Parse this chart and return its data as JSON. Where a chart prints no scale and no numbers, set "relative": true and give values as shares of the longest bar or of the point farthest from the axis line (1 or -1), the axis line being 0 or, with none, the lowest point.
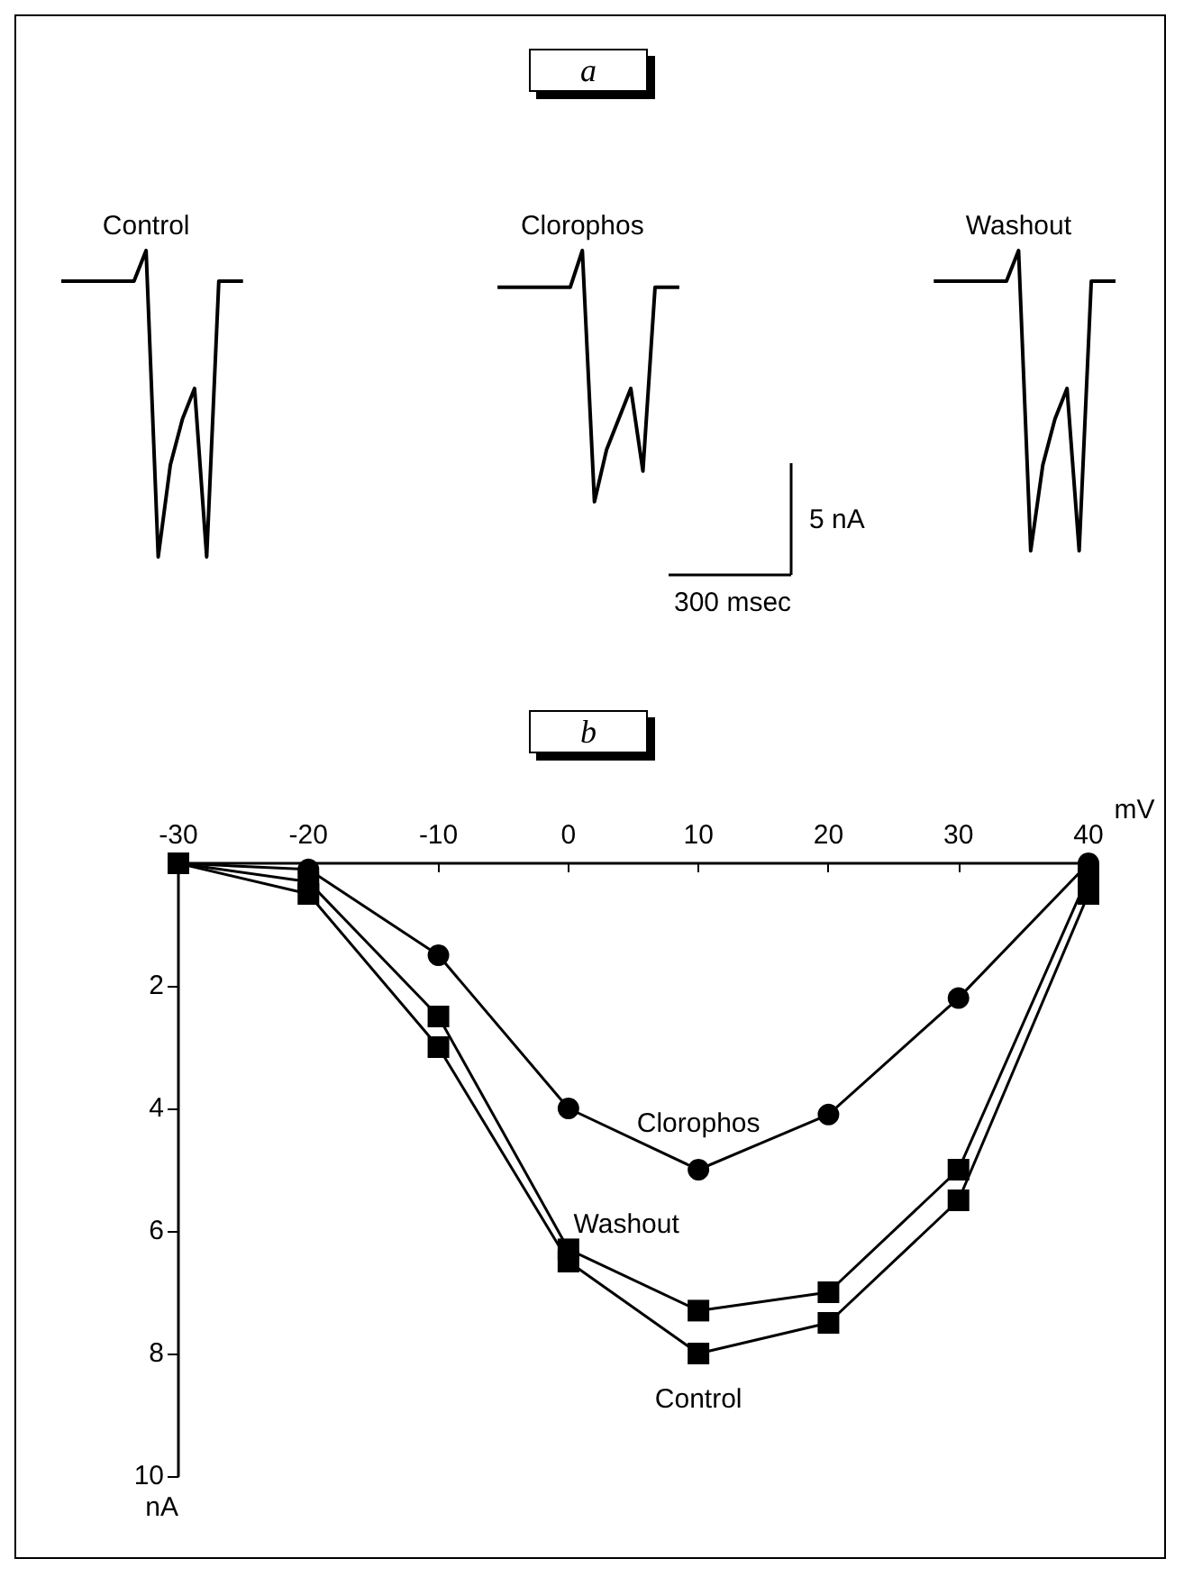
{
  "chart_data": [
    {
      "type": "line",
      "title": "a",
      "relative": true,
      "marker": "none",
      "line_style": "solid",
      "grid": false,
      "legend": false,
      "categories": [
        null,
        null,
        null,
        null,
        null,
        null,
        null,
        null,
        null,
        null,
        null,
        null,
        null,
        null,
        null,
        null,
        null,
        null,
        null,
        null,
        null,
        null,
        null,
        null,
        null,
        null,
        null,
        null,
        null,
        null,
        null,
        null,
        null,
        null,
        null,
        null,
        null,
        null,
        null,
        null,
        null,
        null,
        null,
        null,
        null,
        null,
        null,
        null,
        null,
        null,
        null,
        null,
        null,
        null,
        null,
        null,
        null,
        null,
        null,
        null,
        null,
        null,
        null,
        null,
        null,
        null,
        null,
        null,
        null,
        null,
        null,
        null,
        null,
        null,
        null,
        null,
        null,
        null,
        null,
        null,
        null,
        null,
        null,
        null,
        null,
        null,
        null,
        null
      ],
      "series": [
        {
          "name": "Control",
          "color": "#000000",
          "values": [
            0.9,
            0.9,
            0.9,
            0.9,
            0.9,
            0.9,
            0.9,
            1.0,
            0.0,
            0.3,
            0.45,
            0.55,
            0.0,
            0.9,
            0.9,
            0.9,
            null,
            null,
            null,
            null,
            null,
            null,
            null,
            null,
            null,
            null,
            null,
            null,
            null,
            null,
            null,
            null,
            null,
            null,
            null,
            null,
            null,
            null,
            null,
            null,
            null,
            null,
            null,
            null,
            null,
            null,
            null,
            null,
            null,
            null,
            null,
            null,
            null,
            null,
            null,
            null,
            null,
            null,
            null,
            null,
            null,
            null,
            null,
            null,
            null,
            null,
            null,
            null,
            null,
            null,
            null,
            null,
            null,
            null,
            null,
            null,
            null,
            null,
            null,
            null,
            null,
            null,
            null,
            null,
            null,
            null,
            null,
            null
          ]
        },
        {
          "name": "Clorophos",
          "color": "#000000",
          "values": [
            null,
            null,
            null,
            null,
            null,
            null,
            null,
            null,
            null,
            null,
            null,
            null,
            null,
            null,
            null,
            null,
            null,
            null,
            null,
            null,
            null,
            null,
            null,
            null,
            null,
            null,
            null,
            null,
            null,
            null,
            null,
            null,
            null,
            null,
            null,
            null,
            0.88,
            0.88,
            0.88,
            0.88,
            0.88,
            0.88,
            0.88,
            1.0,
            0.18,
            0.35,
            0.45,
            0.55,
            0.28,
            0.88,
            0.88,
            0.88,
            null,
            null,
            null,
            null,
            null,
            null,
            null,
            null,
            null,
            null,
            null,
            null,
            null,
            null,
            null,
            null,
            null,
            null,
            null,
            null,
            null,
            null,
            null,
            null,
            null,
            null,
            null,
            null,
            null,
            null,
            null,
            null,
            null,
            null,
            null,
            null
          ]
        },
        {
          "name": "Washout",
          "color": "#000000",
          "values": [
            null,
            null,
            null,
            null,
            null,
            null,
            null,
            null,
            null,
            null,
            null,
            null,
            null,
            null,
            null,
            null,
            null,
            null,
            null,
            null,
            null,
            null,
            null,
            null,
            null,
            null,
            null,
            null,
            null,
            null,
            null,
            null,
            null,
            null,
            null,
            null,
            null,
            null,
            null,
            null,
            null,
            null,
            null,
            null,
            null,
            null,
            null,
            null,
            null,
            null,
            null,
            null,
            null,
            null,
            null,
            null,
            null,
            null,
            null,
            null,
            null,
            null,
            null,
            null,
            null,
            null,
            null,
            null,
            null,
            null,
            null,
            null,
            0.9,
            0.9,
            0.9,
            0.9,
            0.9,
            0.9,
            0.9,
            1.0,
            0.02,
            0.3,
            0.45,
            0.55,
            0.02,
            0.9,
            0.9,
            0.9
          ]
        }
      ],
      "annotations": [
        "5 nA",
        "300 msec"
      ]
    },
    {
      "type": "line",
      "title": "b",
      "xlabel": "mV",
      "ylabel": "nA",
      "grid": false,
      "legend": false,
      "line_style": "solid",
      "x": [
        -30,
        -20,
        -10,
        0,
        10,
        20,
        30,
        40
      ],
      "xlim": [
        -30,
        40
      ],
      "xticks": [
        -30,
        -20,
        -10,
        0,
        10,
        20,
        30,
        40
      ],
      "ylim": [
        10,
        0
      ],
      "yticks": [
        {
          "value": 0,
          "label": null
        },
        2,
        4,
        6,
        8,
        10
      ],
      "series": [
        {
          "name": "Clorophos",
          "color": "#000000",
          "marker": "circle",
          "values": [
            0,
            0.1,
            1.5,
            4,
            5,
            4.1,
            2.2,
            0
          ]
        },
        {
          "name": "Washout",
          "color": "#000000",
          "marker": "square",
          "values": [
            0,
            0.3,
            2.5,
            6.3,
            7.3,
            7.0,
            5.0,
            0.2
          ]
        },
        {
          "name": "Control",
          "color": "#000000",
          "marker": "square",
          "values": [
            0,
            0.5,
            3.0,
            6.5,
            8.0,
            7.5,
            5.5,
            0.5
          ]
        }
      ]
    }
  ]
}
